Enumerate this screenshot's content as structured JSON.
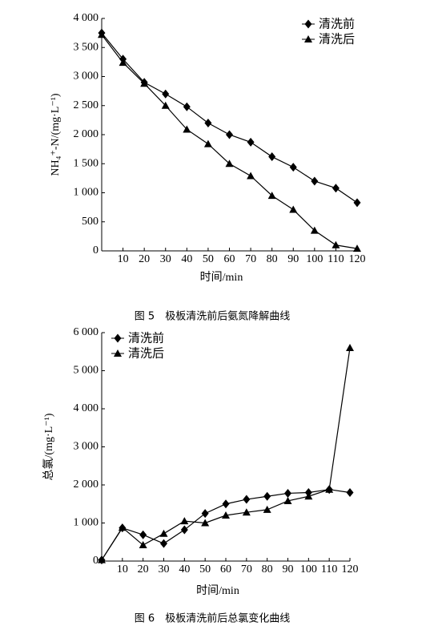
{
  "chart_data": [
    {
      "type": "line",
      "caption": "图 5　极板清洗前后氨氮降解曲线",
      "xlabel": "时间/min",
      "ylabel": "NH₄⁺-N/(mg·L⁻¹)",
      "x": [
        0,
        10,
        20,
        30,
        40,
        50,
        60,
        70,
        80,
        90,
        100,
        110,
        120
      ],
      "series": [
        {
          "name": "清洗前",
          "color": "#000000",
          "marker": "diamond",
          "values": [
            3750,
            3300,
            2900,
            2700,
            2480,
            2200,
            2000,
            1870,
            1620,
            1440,
            1200,
            1080,
            830
          ]
        },
        {
          "name": "清洗后",
          "color": "#000000",
          "marker": "triangle",
          "values": [
            3720,
            3240,
            2880,
            2500,
            2090,
            1840,
            1500,
            1290,
            950,
            710,
            350,
            100,
            40
          ]
        }
      ],
      "xlim": [
        0,
        120
      ],
      "xticks": [
        10,
        20,
        30,
        40,
        50,
        60,
        70,
        80,
        90,
        100,
        110,
        120
      ],
      "ylim": [
        0,
        4000
      ],
      "yticks": [
        0,
        500,
        {
          "value": 1000,
          "label": "1 000"
        },
        {
          "value": 1500,
          "label": "1 500"
        },
        {
          "value": 2000,
          "label": "2 000"
        },
        {
          "value": 2500,
          "label": "2 500"
        },
        {
          "value": 3000,
          "label": "3 000"
        },
        {
          "value": 3500,
          "label": "3 500"
        },
        {
          "value": 4000,
          "label": "4 000"
        }
      ],
      "legend": "upper right"
    },
    {
      "type": "line",
      "caption": "图 6　极板清洗前后总氯变化曲线",
      "xlabel": "时间/min",
      "ylabel": "总氯/(mg·L⁻¹)",
      "x": [
        0,
        10,
        20,
        30,
        40,
        50,
        60,
        70,
        80,
        90,
        100,
        110,
        120
      ],
      "series": [
        {
          "name": "清洗前",
          "color": "#000000",
          "marker": "diamond",
          "values": [
            30,
            870,
            690,
            460,
            820,
            1250,
            1500,
            1620,
            1700,
            1780,
            1800,
            1880,
            1800
          ]
        },
        {
          "name": "清洗后",
          "color": "#000000",
          "marker": "triangle",
          "values": [
            30,
            880,
            420,
            720,
            1050,
            1000,
            1200,
            1280,
            1350,
            1580,
            1700,
            1880,
            5600
          ]
        }
      ],
      "xlim": [
        0,
        120
      ],
      "xticks": [
        10,
        20,
        30,
        40,
        50,
        60,
        70,
        80,
        90,
        100,
        110,
        120
      ],
      "ylim": [
        0,
        6000
      ],
      "yticks": [
        0,
        {
          "value": 1000,
          "label": "1 000"
        },
        {
          "value": 2000,
          "label": "2 000"
        },
        {
          "value": 3000,
          "label": "3 000"
        },
        {
          "value": 4000,
          "label": "4 000"
        },
        {
          "value": 5000,
          "label": "5 000"
        },
        {
          "value": 6000,
          "label": "6 000"
        }
      ],
      "legend": "upper left"
    }
  ]
}
